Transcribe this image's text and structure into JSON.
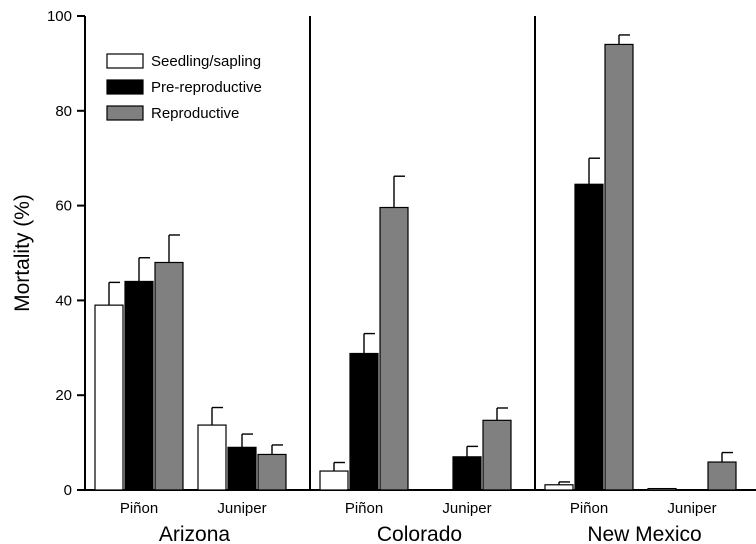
{
  "chart_data": {
    "type": "bar",
    "ylabel": "Mortality (%)",
    "ylim": [
      0,
      100
    ],
    "yticks": [
      0,
      20,
      40,
      60,
      80,
      100
    ],
    "grid": false,
    "legend_position": "top-left",
    "series": [
      {
        "name": "Seedling/sapling",
        "color": "#ffffff"
      },
      {
        "name": "Pre-reproductive",
        "color": "#000000"
      },
      {
        "name": "Reproductive",
        "color": "#808080"
      }
    ],
    "regions": [
      {
        "name": "Arizona",
        "groups": [
          {
            "species": "Piñon",
            "values": [
              39,
              44,
              48
            ],
            "errors": [
              4.8,
              5,
              5.8
            ]
          },
          {
            "species": "Juniper",
            "values": [
              13.7,
              9,
              7.5
            ],
            "errors": [
              3.7,
              2.8,
              2
            ]
          }
        ]
      },
      {
        "name": "Colorado",
        "groups": [
          {
            "species": "Piñon",
            "values": [
              4,
              28.8,
              59.6
            ],
            "errors": [
              1.8,
              4.2,
              6.6
            ]
          },
          {
            "species": "Juniper",
            "values": [
              null,
              7,
              14.7
            ],
            "errors": [
              null,
              2.2,
              2.6
            ]
          }
        ]
      },
      {
        "name": "New Mexico",
        "groups": [
          {
            "species": "Piñon",
            "values": [
              1.1,
              64.5,
              94
            ],
            "errors": [
              0.6,
              5.5,
              2
            ]
          },
          {
            "species": "Juniper",
            "values": [
              0.3,
              null,
              5.9
            ],
            "errors": [
              null,
              null,
              2
            ]
          }
        ]
      }
    ]
  }
}
